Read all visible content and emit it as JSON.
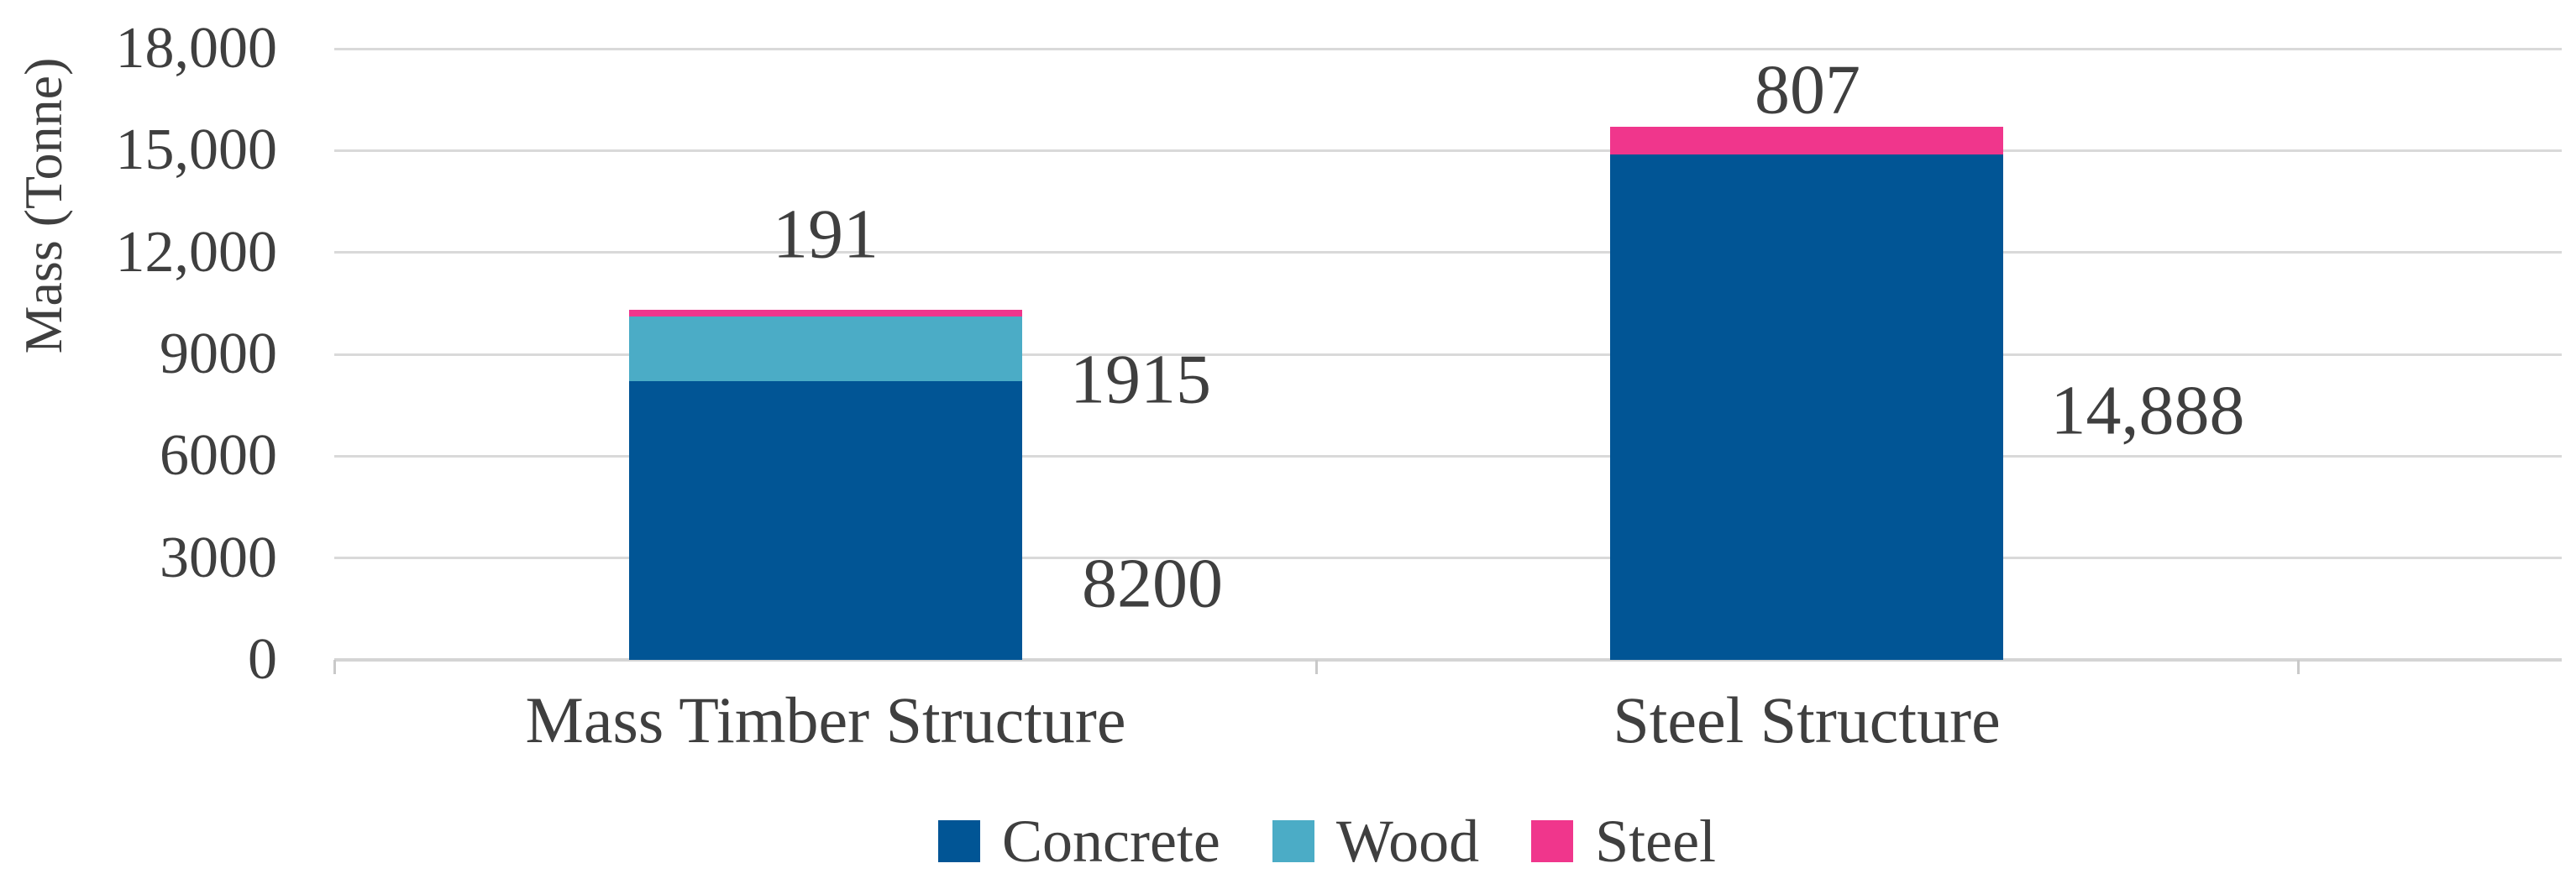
{
  "chart_data": {
    "type": "bar",
    "subtype": "stacked-column",
    "title": "",
    "xlabel": "",
    "ylabel": "Mass (Tonne)",
    "categories": [
      "Mass Timber Structure",
      "Steel Structure"
    ],
    "series": [
      {
        "name": "Concrete",
        "color": "#015595",
        "values": [
          8200,
          14888
        ]
      },
      {
        "name": "Wood",
        "color": "#4BACC6",
        "values": [
          1915,
          0
        ]
      },
      {
        "name": "Steel",
        "color": "#F0368C",
        "values": [
          191,
          807
        ]
      }
    ],
    "data_labels": [
      {
        "series": "Steel",
        "category": "Mass Timber Structure",
        "text": "191"
      },
      {
        "series": "Wood",
        "category": "Mass Timber Structure",
        "text": "1915"
      },
      {
        "series": "Concrete",
        "category": "Mass Timber Structure",
        "text": "8200"
      },
      {
        "series": "Steel",
        "category": "Steel Structure",
        "text": "807"
      },
      {
        "series": "Concrete",
        "category": "Steel Structure",
        "text": "14,888"
      }
    ],
    "ylim": [
      0,
      18000
    ],
    "ytick_interval": 3000,
    "yticks": [
      "18,000",
      "15,000",
      "12,000",
      "9000",
      "6000",
      "3000",
      "0"
    ],
    "grid": true,
    "legend_position": "bottom",
    "legend_items": [
      "Concrete",
      "Wood",
      "Steel"
    ]
  },
  "styles": {
    "text_color": "#3F3F3F",
    "gridline_color": "#D9D9D9",
    "axis_line_color": "#D4D4D4",
    "background": "#FFFFFF"
  }
}
